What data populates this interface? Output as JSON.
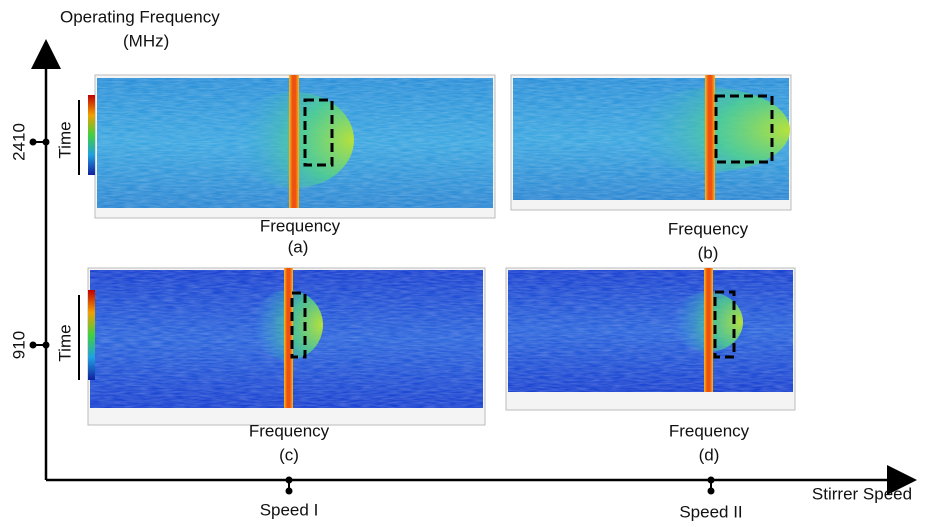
{
  "y_axis": {
    "label_lines": [
      "Operating Frequency",
      "(MHz)"
    ],
    "ticks": [
      "2410",
      "910"
    ]
  },
  "x_axis": {
    "label": "Stirrer Speed",
    "ticks": [
      "Speed I",
      "Speed II"
    ]
  },
  "panels": [
    {
      "y_label": "Time",
      "x_label": "Frequency",
      "caption": "(a)"
    },
    {
      "x_label": "Frequency",
      "caption": "(b)"
    },
    {
      "y_label": "Time",
      "x_label": "Frequency",
      "caption": "(c)"
    },
    {
      "x_label": "Frequency",
      "caption": "(d)"
    }
  ]
}
